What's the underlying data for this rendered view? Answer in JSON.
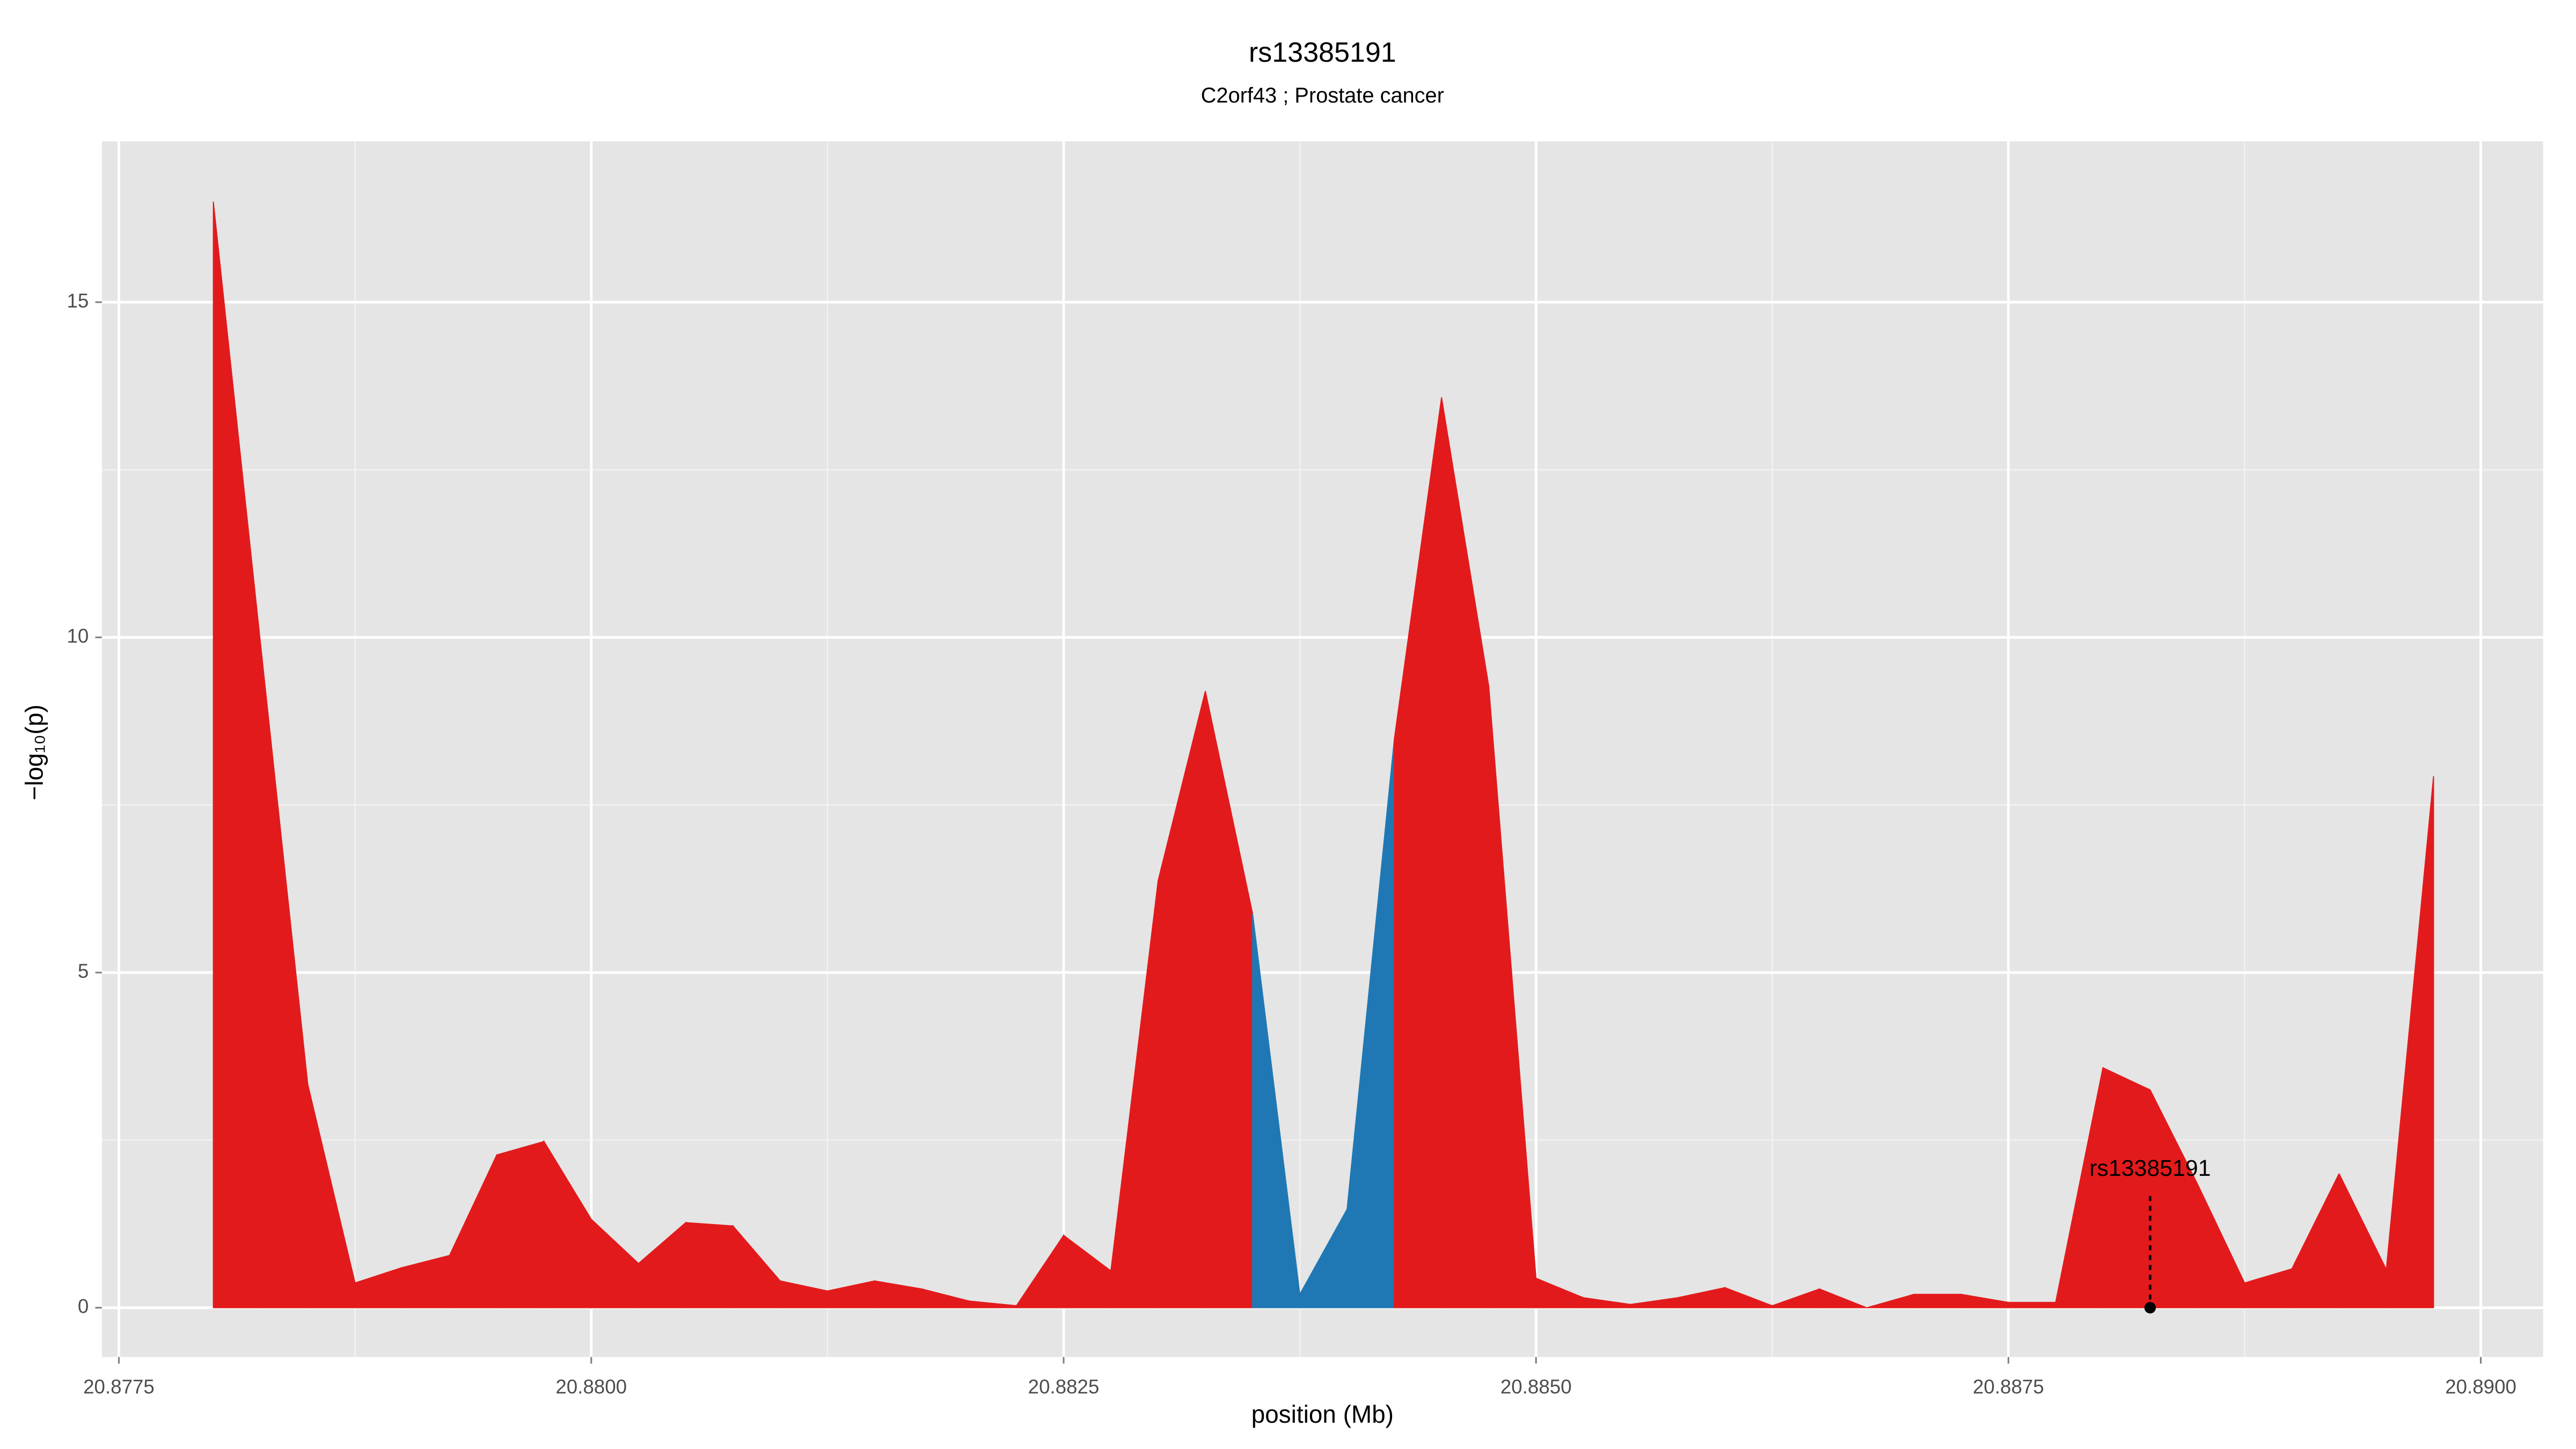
{
  "chart_data": {
    "type": "area",
    "title": "rs13385191",
    "subtitle": "C2orf43 ; Prostate cancer",
    "x_label": "position (Mb)",
    "y_label": "−log₁₀(p)",
    "x": [
      20.878,
      20.87825,
      20.8785,
      20.87875,
      20.879,
      20.87925,
      20.8795,
      20.87975,
      20.88,
      20.88025,
      20.8805,
      20.88075,
      20.881,
      20.88125,
      20.8815,
      20.88175,
      20.882,
      20.88225,
      20.8825,
      20.88275,
      20.883,
      20.88325,
      20.8835,
      20.88375,
      20.884,
      20.88425,
      20.8845,
      20.88475,
      20.885,
      20.88525,
      20.8855,
      20.88575,
      20.886,
      20.88625,
      20.8865,
      20.88675,
      20.887,
      20.88725,
      20.8875,
      20.88775,
      20.888,
      20.88825,
      20.8885,
      20.88875,
      20.889,
      20.88925,
      20.8895,
      20.88975
    ],
    "values": [
      16.5,
      9.9,
      3.33,
      0.37,
      0.6,
      0.78,
      2.28,
      2.48,
      1.32,
      0.66,
      1.27,
      1.22,
      0.4,
      0.25,
      0.4,
      0.28,
      0.1,
      0.03,
      1.08,
      0.55,
      6.37,
      9.2,
      5.88,
      0.2,
      1.47,
      8.48,
      13.58,
      9.27,
      0.44,
      0.15,
      0.05,
      0.15,
      0.3,
      0.03,
      0.28,
      0,
      0.2,
      0.2,
      0.08,
      0.08,
      3.58,
      3.25,
      1.85,
      0.37,
      0.58,
      2.0,
      0.57,
      7.93
    ],
    "colors": [
      "#e31a1c",
      "#e31a1c",
      "#e31a1c",
      "#e31a1c",
      "#e31a1c",
      "#e31a1c",
      "#e31a1c",
      "#e31a1c",
      "#e31a1c",
      "#e31a1c",
      "#e31a1c",
      "#e31a1c",
      "#e31a1c",
      "#e31a1c",
      "#e31a1c",
      "#e31a1c",
      "#e31a1c",
      "#e31a1c",
      "#e31a1c",
      "#e31a1c",
      "#e31a1c",
      "#e31a1c",
      "#1f78b4",
      "#1f78b4",
      "#1f78b4",
      "#e31a1c",
      "#e31a1c",
      "#e31a1c",
      "#e31a1c",
      "#e31a1c",
      "#e31a1c",
      "#e31a1c",
      "#e31a1c",
      "#e31a1c",
      "#e31a1c",
      "#e31a1c",
      "#e31a1c",
      "#e31a1c",
      "#e31a1c",
      "#e31a1c",
      "#e31a1c",
      "#e31a1c",
      "#e31a1c",
      "#e31a1c",
      "#e31a1c",
      "#e31a1c",
      "#e31a1c",
      "#e31a1c"
    ],
    "annotation": {
      "text": "rs13385191",
      "x": 20.88825,
      "y": 0
    },
    "xlim": [
      20.87741,
      20.89033
    ],
    "ylim": [
      -0.735,
      17.4
    ],
    "xticks": [
      20.8775,
      {
        "value": 20.88,
        "label": "20.8800"
      },
      20.8825,
      {
        "value": 20.885,
        "label": "20.8850"
      },
      20.8875,
      {
        "value": 20.89,
        "label": "20.8900"
      }
    ],
    "yticks": [
      0,
      5,
      10,
      15
    ],
    "grid": true
  }
}
